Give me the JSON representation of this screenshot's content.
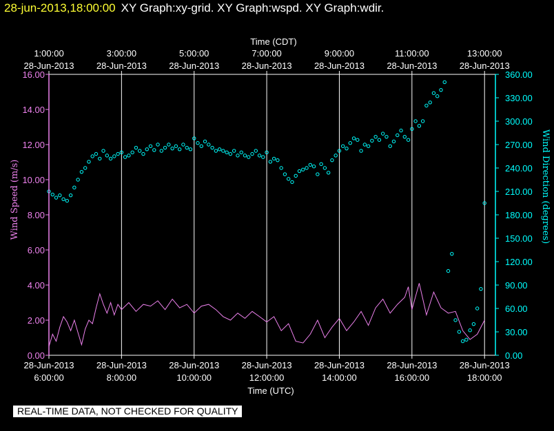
{
  "header": {
    "timestamp": "28-jun-2013,18:00:00",
    "title": "XY Graph:xy-grid.  XY Graph:wspd.  XY Graph:wdir."
  },
  "footer": {
    "qc_note": "REAL-TIME DATA, NOT CHECKED FOR QUALITY"
  },
  "colors": {
    "background": "#000000",
    "wind_speed": "#ee82ee",
    "wind_direction": "#00ffff",
    "grid": "#ffffff",
    "header_time": "#ffff33"
  },
  "chart_data": {
    "type": "line",
    "title": "",
    "grid": true,
    "x_top_label": "Time (CDT)",
    "x_bottom_label": "Time (UTC)",
    "xlim_utc_hours": [
      6,
      18.3
    ],
    "x_top_ticks": [
      {
        "hour_utc": 6,
        "time": "1:00:00",
        "date": "28-Jun-2013"
      },
      {
        "hour_utc": 8,
        "time": "3:00:00",
        "date": "28-Jun-2013"
      },
      {
        "hour_utc": 10,
        "time": "5:00:00",
        "date": "28-Jun-2013"
      },
      {
        "hour_utc": 12,
        "time": "7:00:00",
        "date": "28-Jun-2013"
      },
      {
        "hour_utc": 14,
        "time": "9:00:00",
        "date": "28-Jun-2013"
      },
      {
        "hour_utc": 16,
        "time": "11:00:00",
        "date": "28-Jun-2013"
      },
      {
        "hour_utc": 18,
        "time": "13:00:00",
        "date": "28-Jun-2013"
      }
    ],
    "x_bottom_ticks": [
      {
        "hour_utc": 6,
        "date": "28-Jun-2013",
        "time": "6:00:00"
      },
      {
        "hour_utc": 8,
        "date": "28-Jun-2013",
        "time": "8:00:00"
      },
      {
        "hour_utc": 10,
        "date": "28-Jun-2013",
        "time": "10:00:00"
      },
      {
        "hour_utc": 12,
        "date": "28-Jun-2013",
        "time": "12:00:00"
      },
      {
        "hour_utc": 14,
        "date": "28-Jun-2013",
        "time": "14:00:00"
      },
      {
        "hour_utc": 16,
        "date": "28-Jun-2013",
        "time": "16:00:00"
      },
      {
        "hour_utc": 18,
        "date": "28-Jun-2013",
        "time": "18:00:00"
      }
    ],
    "y_left": {
      "label": "Wind Speed (m/s)",
      "lim": [
        0,
        16
      ],
      "ticks": [
        0,
        2,
        4,
        6,
        8,
        10,
        12,
        14,
        16
      ],
      "tick_labels": [
        "0.00",
        "2.00",
        "4.00",
        "6.00",
        "8.00",
        "10.00",
        "12.00",
        "14.00",
        "16.00"
      ]
    },
    "y_right": {
      "label": "Wind Direction (degrees)",
      "lim": [
        0,
        360
      ],
      "ticks": [
        0,
        30,
        60,
        90,
        120,
        150,
        180,
        210,
        240,
        270,
        300,
        330,
        360
      ],
      "tick_labels": [
        "0.00",
        "30.00",
        "60.00",
        "90.00",
        "120.00",
        "150.00",
        "180.00",
        "210.00",
        "240.00",
        "270.00",
        "300.00",
        "330.00",
        "360.00"
      ]
    },
    "series": [
      {
        "axis": "left",
        "style": "line",
        "x_utc_hours": [
          6.0,
          6.1,
          6.2,
          6.3,
          6.4,
          6.5,
          6.6,
          6.7,
          6.8,
          6.9,
          7.0,
          7.1,
          7.2,
          7.3,
          7.4,
          7.5,
          7.6,
          7.7,
          7.8,
          7.9,
          8.0,
          8.2,
          8.4,
          8.6,
          8.8,
          9.0,
          9.2,
          9.4,
          9.6,
          9.8,
          10.0,
          10.2,
          10.4,
          10.6,
          10.8,
          11.0,
          11.2,
          11.4,
          11.6,
          11.8,
          12.0,
          12.2,
          12.4,
          12.6,
          12.8,
          13.0,
          13.2,
          13.4,
          13.6,
          13.8,
          14.0,
          14.2,
          14.4,
          14.6,
          14.8,
          15.0,
          15.2,
          15.4,
          15.6,
          15.8,
          15.9,
          16.0,
          16.2,
          16.4,
          16.6,
          16.8,
          17.0,
          17.2,
          17.4,
          17.6,
          17.8,
          18.0
        ],
        "values": [
          0.5,
          1.2,
          0.8,
          1.6,
          2.2,
          1.9,
          1.4,
          2.0,
          1.3,
          0.6,
          1.5,
          2.0,
          1.8,
          2.7,
          3.5,
          2.9,
          2.4,
          3.0,
          2.3,
          2.9,
          2.6,
          3.0,
          2.5,
          2.9,
          2.8,
          3.1,
          2.6,
          3.2,
          2.7,
          2.9,
          2.4,
          2.8,
          2.9,
          2.6,
          2.2,
          2.0,
          2.4,
          2.1,
          2.5,
          2.2,
          1.9,
          2.2,
          1.4,
          1.8,
          0.8,
          0.7,
          1.2,
          2.0,
          1.0,
          1.6,
          2.1,
          1.4,
          1.9,
          2.5,
          1.7,
          2.7,
          3.2,
          2.4,
          2.9,
          3.3,
          3.9,
          2.6,
          4.1,
          2.3,
          3.6,
          2.7,
          2.4,
          2.5,
          1.4,
          0.9,
          1.2,
          2.0
        ]
      },
      {
        "axis": "right",
        "style": "points",
        "x_utc_hours": [
          6.0,
          6.1,
          6.2,
          6.3,
          6.4,
          6.5,
          6.6,
          6.7,
          6.8,
          6.9,
          7.0,
          7.1,
          7.2,
          7.3,
          7.4,
          7.5,
          7.6,
          7.7,
          7.8,
          7.9,
          8.0,
          8.1,
          8.2,
          8.3,
          8.4,
          8.5,
          8.6,
          8.7,
          8.8,
          8.9,
          9.0,
          9.1,
          9.2,
          9.3,
          9.4,
          9.5,
          9.6,
          9.7,
          9.8,
          9.9,
          10.0,
          10.1,
          10.2,
          10.3,
          10.4,
          10.5,
          10.6,
          10.7,
          10.8,
          10.9,
          11.0,
          11.1,
          11.2,
          11.3,
          11.4,
          11.5,
          11.6,
          11.7,
          11.8,
          11.9,
          12.0,
          12.1,
          12.2,
          12.3,
          12.4,
          12.5,
          12.6,
          12.7,
          12.8,
          12.9,
          13.0,
          13.1,
          13.2,
          13.3,
          13.4,
          13.5,
          13.6,
          13.7,
          13.8,
          13.9,
          14.0,
          14.1,
          14.2,
          14.3,
          14.4,
          14.5,
          14.6,
          14.7,
          14.8,
          14.9,
          15.0,
          15.1,
          15.2,
          15.3,
          15.4,
          15.5,
          15.6,
          15.7,
          15.8,
          15.9,
          16.0,
          16.1,
          16.2,
          16.3,
          16.4,
          16.5,
          16.6,
          16.7,
          16.8,
          16.9,
          17.0,
          17.1,
          17.2,
          17.3,
          17.4,
          17.5,
          17.6,
          17.7,
          17.8,
          17.9,
          18.0
        ],
        "values": [
          210,
          206,
          202,
          205,
          200,
          198,
          205,
          215,
          225,
          235,
          240,
          248,
          255,
          258,
          252,
          262,
          256,
          252,
          255,
          258,
          260,
          254,
          256,
          260,
          266,
          262,
          258,
          264,
          268,
          263,
          270,
          262,
          266,
          270,
          265,
          268,
          264,
          270,
          266,
          264,
          278,
          272,
          268,
          274,
          270,
          266,
          262,
          264,
          262,
          260,
          258,
          262,
          256,
          260,
          256,
          254,
          258,
          262,
          256,
          254,
          260,
          248,
          252,
          250,
          240,
          232,
          226,
          222,
          230,
          236,
          238,
          240,
          244,
          242,
          232,
          245,
          240,
          234,
          250,
          256,
          262,
          268,
          265,
          272,
          278,
          276,
          262,
          270,
          268,
          275,
          280,
          276,
          284,
          280,
          268,
          274,
          282,
          288,
          280,
          276,
          290,
          300,
          294,
          300,
          320,
          324,
          336,
          332,
          340,
          350,
          108,
          130,
          45,
          30,
          18,
          20,
          32,
          40,
          60,
          85,
          195
        ]
      }
    ]
  }
}
